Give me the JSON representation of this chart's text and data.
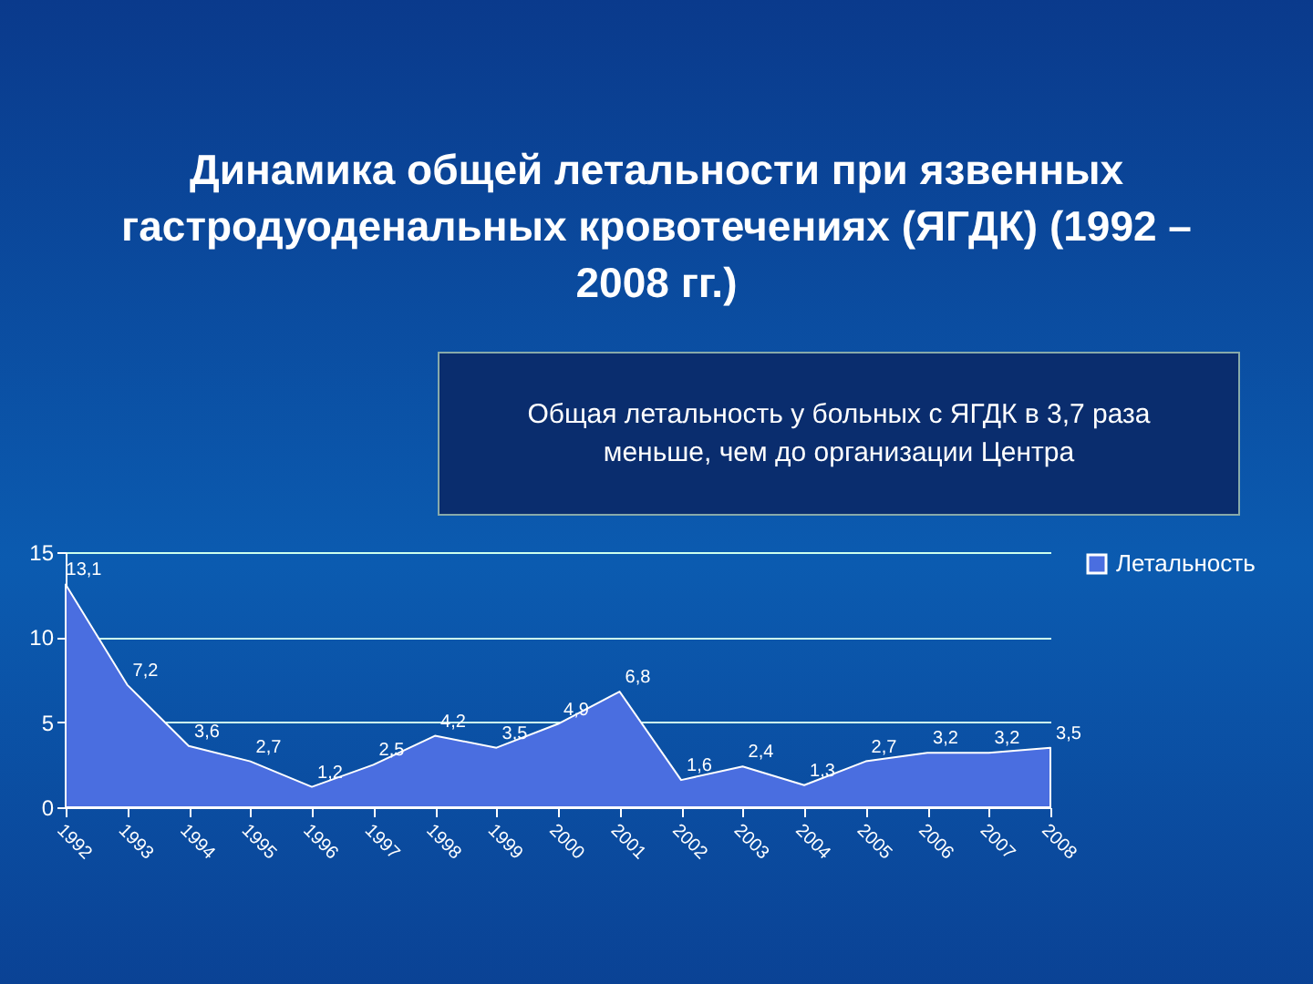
{
  "chart_data": {
    "type": "area",
    "title": "Динамика общей летальности при язвенных гастродуоденальных кровотечениях (ЯГДК) (1992 – 2008 гг.)",
    "annotations": [
      "Общая летальность у больных с ЯГДК в 3,7 раза меньше, чем до организации Центра"
    ],
    "categories": [
      "1992",
      "1993",
      "1994",
      "1995",
      "1996",
      "1997",
      "1998",
      "1999",
      "2000",
      "2001",
      "2002",
      "2003",
      "2004",
      "2005",
      "2006",
      "2007",
      "2008"
    ],
    "series": [
      {
        "name": "Летальность",
        "color": "#4a6ee0",
        "values": [
          13.1,
          7.2,
          3.6,
          2.7,
          1.2,
          2.5,
          4.2,
          3.5,
          4.9,
          6.8,
          1.6,
          2.4,
          1.3,
          2.7,
          3.2,
          3.2,
          3.5
        ],
        "value_labels": [
          "13,1",
          "7,2",
          "3,6",
          "2,7",
          "1,2",
          "2,5",
          "4,2",
          "3,5",
          "4,9",
          "6,8",
          "1,6",
          "2,4",
          "1,3",
          "2,7",
          "3,2",
          "3,2",
          "3,5"
        ]
      }
    ],
    "ylim": [
      0,
      15
    ],
    "yticks": [
      0,
      5,
      10,
      15
    ],
    "grid": "y",
    "legend": "right"
  }
}
